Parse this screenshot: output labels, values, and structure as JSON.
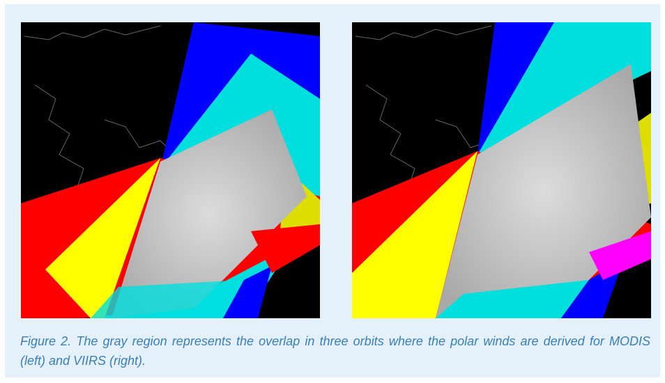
{
  "figure": {
    "caption": "Figure 2. The gray region represents the overlap in three orbits where the polar winds are derived for MODIS (left) and VIIRS (right).",
    "left_image_label": "MODIS",
    "right_image_label": "VIIRS",
    "swath_colors": {
      "orbit_1": "#ff0000",
      "orbit_2": "#00ffff",
      "orbit_3": "#0000ff",
      "overlap_1_2": "#ffff00",
      "overlap_2_3": "#00ff00",
      "overlap_all": "#c8c8c8",
      "background": "#000000"
    }
  }
}
